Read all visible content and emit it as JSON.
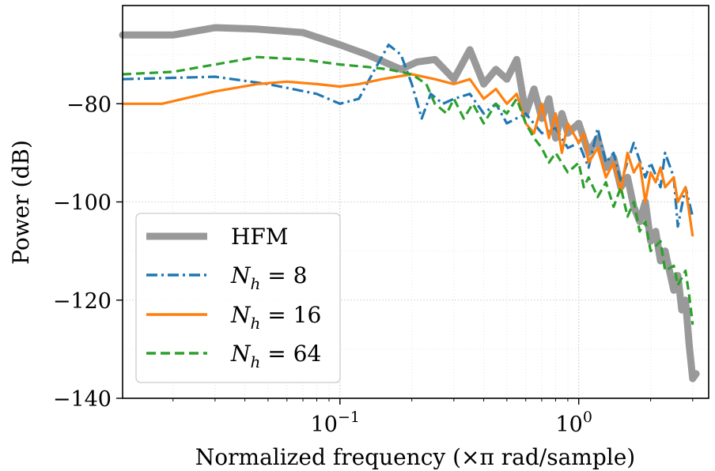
{
  "chart_data": {
    "type": "line",
    "xlabel": "Normalized frequency (×π rad/sample)",
    "ylabel": "Power (dB)",
    "x_scale": "log",
    "xlim": [
      0.0123,
      3.5
    ],
    "ylim": [
      -140,
      -60
    ],
    "grid": true,
    "legend_position": "lower-left",
    "yticks": [
      {
        "value": -80,
        "label": "−80"
      },
      {
        "value": -100,
        "label": "−100"
      },
      {
        "value": -120,
        "label": "−120"
      },
      {
        "value": -140,
        "label": "−140"
      }
    ],
    "xticks": [
      {
        "value": 0.1,
        "base": "10",
        "exp": "−1"
      },
      {
        "value": 1,
        "base": "10",
        "exp": "0"
      }
    ],
    "series": [
      {
        "name": "HFM",
        "color": "#999999",
        "style": "solid-thick",
        "points": [
          [
            0.0123,
            -66
          ],
          [
            0.02,
            -66
          ],
          [
            0.03,
            -64.5
          ],
          [
            0.045,
            -64.8
          ],
          [
            0.07,
            -65.5
          ],
          [
            0.1,
            -68
          ],
          [
            0.13,
            -70
          ],
          [
            0.18,
            -73
          ],
          [
            0.21,
            -71.5
          ],
          [
            0.25,
            -71
          ],
          [
            0.3,
            -75
          ],
          [
            0.35,
            -69
          ],
          [
            0.4,
            -76
          ],
          [
            0.45,
            -73
          ],
          [
            0.5,
            -75
          ],
          [
            0.55,
            -71
          ],
          [
            0.6,
            -82
          ],
          [
            0.65,
            -77
          ],
          [
            0.7,
            -83
          ],
          [
            0.75,
            -79
          ],
          [
            0.8,
            -87
          ],
          [
            0.85,
            -82
          ],
          [
            0.9,
            -86
          ],
          [
            1.0,
            -84
          ],
          [
            1.1,
            -90
          ],
          [
            1.2,
            -87
          ],
          [
            1.3,
            -93
          ],
          [
            1.4,
            -91
          ],
          [
            1.5,
            -97
          ],
          [
            1.6,
            -95
          ],
          [
            1.7,
            -101
          ],
          [
            1.8,
            -104
          ],
          [
            1.9,
            -100
          ],
          [
            2.0,
            -108
          ],
          [
            2.1,
            -106
          ],
          [
            2.2,
            -112
          ],
          [
            2.3,
            -110
          ],
          [
            2.5,
            -118
          ],
          [
            2.6,
            -115
          ],
          [
            2.7,
            -122
          ],
          [
            2.8,
            -120
          ],
          [
            2.9,
            -129
          ],
          [
            3.0,
            -136
          ],
          [
            3.1,
            -135
          ]
        ]
      },
      {
        "name": "N_h = 8",
        "color": "#1f77b4",
        "style": "dashdot",
        "points": [
          [
            0.0123,
            -75
          ],
          [
            0.03,
            -74.5
          ],
          [
            0.05,
            -76
          ],
          [
            0.08,
            -78
          ],
          [
            0.1,
            -80
          ],
          [
            0.12,
            -79
          ],
          [
            0.14,
            -73
          ],
          [
            0.16,
            -68
          ],
          [
            0.18,
            -70
          ],
          [
            0.2,
            -76
          ],
          [
            0.22,
            -83
          ],
          [
            0.24,
            -78
          ],
          [
            0.27,
            -80
          ],
          [
            0.3,
            -79
          ],
          [
            0.35,
            -78
          ],
          [
            0.4,
            -82
          ],
          [
            0.45,
            -80
          ],
          [
            0.5,
            -84
          ],
          [
            0.6,
            -82
          ],
          [
            0.7,
            -86
          ],
          [
            0.8,
            -85
          ],
          [
            0.9,
            -89
          ],
          [
            1.0,
            -88
          ],
          [
            1.1,
            -93
          ],
          [
            1.2,
            -85
          ],
          [
            1.3,
            -92
          ],
          [
            1.4,
            -90
          ],
          [
            1.5,
            -96
          ],
          [
            1.7,
            -88
          ],
          [
            1.9,
            -95
          ],
          [
            2.0,
            -92
          ],
          [
            2.2,
            -97
          ],
          [
            2.3,
            -90
          ],
          [
            2.5,
            -95
          ],
          [
            2.6,
            -105
          ],
          [
            2.8,
            -97
          ],
          [
            3.0,
            -103
          ]
        ]
      },
      {
        "name": "N_h = 16",
        "color": "#ff7f0e",
        "style": "solid",
        "points": [
          [
            0.0123,
            -80
          ],
          [
            0.018,
            -80
          ],
          [
            0.03,
            -77.5
          ],
          [
            0.045,
            -76
          ],
          [
            0.06,
            -75.5
          ],
          [
            0.08,
            -76
          ],
          [
            0.1,
            -76.5
          ],
          [
            0.12,
            -76
          ],
          [
            0.15,
            -75
          ],
          [
            0.2,
            -74
          ],
          [
            0.25,
            -75
          ],
          [
            0.3,
            -76
          ],
          [
            0.35,
            -75
          ],
          [
            0.4,
            -79
          ],
          [
            0.45,
            -77
          ],
          [
            0.5,
            -80
          ],
          [
            0.55,
            -78
          ],
          [
            0.6,
            -84
          ],
          [
            0.65,
            -86
          ],
          [
            0.7,
            -80
          ],
          [
            0.75,
            -87
          ],
          [
            0.8,
            -82
          ],
          [
            0.85,
            -90
          ],
          [
            0.9,
            -84
          ],
          [
            1.0,
            -88
          ],
          [
            1.05,
            -86
          ],
          [
            1.1,
            -92
          ],
          [
            1.2,
            -89
          ],
          [
            1.3,
            -95
          ],
          [
            1.4,
            -92
          ],
          [
            1.5,
            -98
          ],
          [
            1.6,
            -90
          ],
          [
            1.7,
            -94
          ],
          [
            1.8,
            -92
          ],
          [
            1.9,
            -100
          ],
          [
            2.0,
            -94
          ],
          [
            2.1,
            -96
          ],
          [
            2.2,
            -93
          ],
          [
            2.3,
            -97
          ],
          [
            2.5,
            -95
          ],
          [
            2.6,
            -100
          ],
          [
            2.8,
            -97
          ],
          [
            3.0,
            -107
          ]
        ]
      },
      {
        "name": "N_h = 64",
        "color": "#2ca02c",
        "style": "dashed",
        "points": [
          [
            0.0123,
            -74
          ],
          [
            0.02,
            -73.5
          ],
          [
            0.03,
            -72
          ],
          [
            0.045,
            -70.5
          ],
          [
            0.07,
            -71
          ],
          [
            0.1,
            -72
          ],
          [
            0.13,
            -72.5
          ],
          [
            0.16,
            -73
          ],
          [
            0.2,
            -74
          ],
          [
            0.23,
            -76
          ],
          [
            0.25,
            -80
          ],
          [
            0.28,
            -82
          ],
          [
            0.3,
            -79
          ],
          [
            0.33,
            -83
          ],
          [
            0.36,
            -80
          ],
          [
            0.4,
            -84
          ],
          [
            0.45,
            -80
          ],
          [
            0.5,
            -82
          ],
          [
            0.55,
            -79
          ],
          [
            0.6,
            -84
          ],
          [
            0.65,
            -87
          ],
          [
            0.7,
            -89
          ],
          [
            0.75,
            -92
          ],
          [
            0.8,
            -90
          ],
          [
            0.9,
            -94
          ],
          [
            1.0,
            -92
          ],
          [
            1.05,
            -97
          ],
          [
            1.1,
            -95
          ],
          [
            1.2,
            -99
          ],
          [
            1.3,
            -96
          ],
          [
            1.4,
            -101
          ],
          [
            1.5,
            -97
          ],
          [
            1.6,
            -103
          ],
          [
            1.7,
            -100
          ],
          [
            1.8,
            -106
          ],
          [
            1.9,
            -104
          ],
          [
            2.0,
            -110
          ],
          [
            2.2,
            -108
          ],
          [
            2.3,
            -114
          ],
          [
            2.5,
            -113
          ],
          [
            2.6,
            -117
          ],
          [
            2.8,
            -114
          ],
          [
            2.9,
            -119
          ],
          [
            3.0,
            -125
          ]
        ]
      }
    ]
  }
}
